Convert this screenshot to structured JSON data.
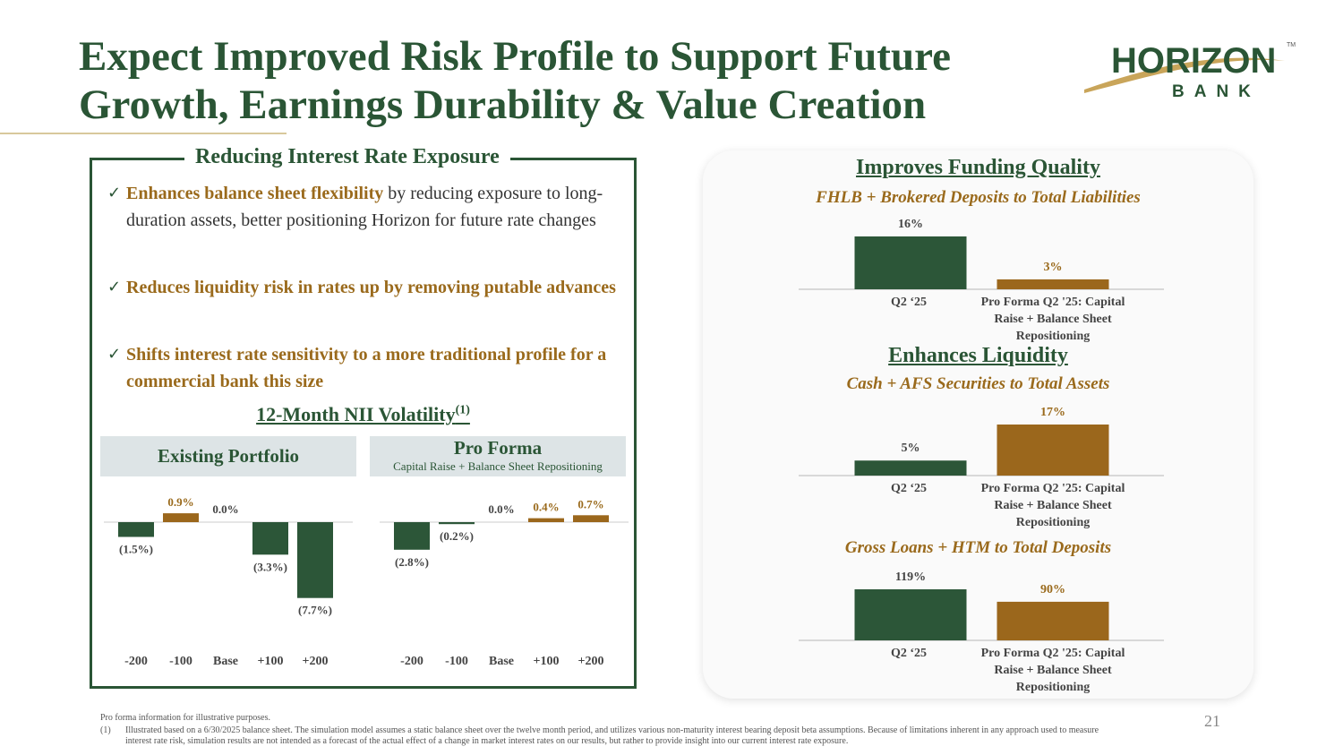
{
  "slide": {
    "title": "Expect Improved Risk Profile to Support Future Growth, Earnings Durability & Value Creation",
    "page_number": "21"
  },
  "logo": {
    "word": "HORIZON",
    "sub": "BANK",
    "tm": "TM"
  },
  "left": {
    "box_title": "Reducing Interest Rate Exposure",
    "bullets": [
      {
        "check": "✓",
        "bold": "Enhances balance sheet flexibility",
        "rest": " by reducing exposure to long-duration assets, better positioning Horizon for future rate changes"
      },
      {
        "check": "✓",
        "bold": "Reduces liquidity risk in rates up by removing putable advances",
        "rest": ""
      },
      {
        "check": "✓",
        "bold": "Shifts interest rate sensitivity to a more traditional profile for a commercial bank this size",
        "rest": ""
      }
    ],
    "nii_title": "12-Month NII Volatility",
    "nii_sup": "(1)",
    "tab1": "Existing Portfolio",
    "tab2_title": "Pro Forma",
    "tab2_sub": "Capital Raise + Balance Sheet Repositioning"
  },
  "right": {
    "funding_head": "Improves Funding Quality",
    "liquidity_head": "Enhances Liquidity"
  },
  "colors": {
    "green": "#2a5535",
    "gold": "#9a6a1c",
    "bar_green": "#2c5638",
    "bar_gold": "#9b671c",
    "axis": "#cccccc"
  },
  "footnotes": {
    "line1": "Pro forma information for illustrative purposes.",
    "num": "(1)",
    "line2": "Illustrated based on a 6/30/2025 balance sheet. The simulation model assumes a static balance sheet over the twelve month period, and utilizes various non-maturity interest bearing deposit beta assumptions. Because of limitations inherent in any approach used to measure interest rate risk, simulation results are not intended as a forecast of the actual effect of a change in market interest rates on our results, but rather to provide insight into our current interest rate exposure."
  },
  "chart_data": [
    {
      "type": "bar",
      "title": "12-Month NII Volatility - Existing Portfolio",
      "categories": [
        "-200",
        "-100",
        "Base",
        "+100",
        "+200"
      ],
      "values": [
        -1.5,
        0.9,
        0.0,
        -3.3,
        -7.7
      ],
      "labels": [
        "(1.5%)",
        "0.9%",
        "0.0%",
        "(3.3%)",
        "(7.7%)"
      ],
      "unit": "%"
    },
    {
      "type": "bar",
      "title": "12-Month NII Volatility - Pro Forma",
      "categories": [
        "-200",
        "-100",
        "Base",
        "+100",
        "+200"
      ],
      "values": [
        -2.8,
        -0.2,
        0.0,
        0.4,
        0.7
      ],
      "labels": [
        "(2.8%)",
        "(0.2%)",
        "0.0%",
        "0.4%",
        "0.7%"
      ],
      "unit": "%"
    },
    {
      "type": "bar",
      "title": "FHLB + Brokered Deposits to Total Liabilities",
      "categories": [
        "Q2 ‘25",
        "Pro Forma Q2 '25: Capital Raise + Balance Sheet Repositioning"
      ],
      "cat_lines": [
        [
          "Q2 ‘25"
        ],
        [
          "Pro Forma Q2 '25: Capital",
          "Raise + Balance Sheet",
          "Repositioning"
        ]
      ],
      "values": [
        16,
        3
      ],
      "labels": [
        "16%",
        "3%"
      ],
      "unit": "%"
    },
    {
      "type": "bar",
      "title": "Cash + AFS Securities to Total Assets",
      "categories": [
        "Q2 ‘25",
        "Pro Forma Q2 '25: Capital Raise + Balance Sheet Repositioning"
      ],
      "cat_lines": [
        [
          "Q2 ‘25"
        ],
        [
          "Pro Forma Q2 '25: Capital",
          "Raise + Balance Sheet",
          "Repositioning"
        ]
      ],
      "values": [
        5,
        17
      ],
      "labels": [
        "5%",
        "17%"
      ],
      "unit": "%"
    },
    {
      "type": "bar",
      "title": "Gross Loans + HTM to Total Deposits",
      "categories": [
        "Q2 ‘25",
        "Pro Forma Q2 '25: Capital Raise + Balance Sheet Repositioning"
      ],
      "cat_lines": [
        [
          "Q2 ‘25"
        ],
        [
          "Pro Forma Q2 '25: Capital",
          "Raise + Balance Sheet",
          "Repositioning"
        ]
      ],
      "values": [
        119,
        90
      ],
      "labels": [
        "119%",
        "90%"
      ],
      "unit": "%"
    }
  ]
}
